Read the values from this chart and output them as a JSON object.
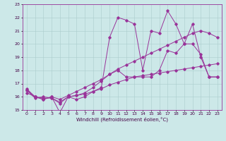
{
  "xlabel": "Windchill (Refroidissement éolien,°C)",
  "xlim": [
    -0.5,
    23.5
  ],
  "ylim": [
    15,
    23
  ],
  "yticks": [
    15,
    16,
    17,
    18,
    19,
    20,
    21,
    22,
    23
  ],
  "xticks": [
    0,
    1,
    2,
    3,
    4,
    5,
    6,
    7,
    8,
    9,
    10,
    11,
    12,
    13,
    14,
    15,
    16,
    17,
    18,
    19,
    20,
    21,
    22,
    23
  ],
  "bg_color": "#cce8e8",
  "grid_color": "#aacccc",
  "line_color": "#993399",
  "line1_x": [
    0,
    1,
    2,
    3,
    4,
    5,
    6,
    7,
    8,
    9,
    10,
    11,
    12,
    13,
    14,
    15,
    16,
    17,
    18,
    19,
    20,
    21,
    22,
    23
  ],
  "line1_y": [
    16.6,
    16.0,
    15.8,
    16.0,
    14.8,
    16.0,
    15.8,
    16.0,
    16.4,
    16.7,
    20.5,
    22.0,
    21.8,
    21.5,
    18.0,
    21.0,
    20.8,
    22.5,
    21.5,
    20.0,
    21.5,
    19.0,
    17.5,
    17.5
  ],
  "line2_x": [
    0,
    1,
    2,
    3,
    4,
    5,
    6,
    7,
    8,
    9,
    10,
    11,
    12,
    13,
    14,
    15,
    16,
    17,
    18,
    19,
    20,
    21,
    22,
    23
  ],
  "line2_y": [
    16.5,
    16.0,
    15.9,
    15.9,
    15.6,
    16.0,
    16.1,
    16.3,
    16.7,
    17.2,
    17.7,
    18.0,
    17.5,
    17.5,
    17.5,
    17.5,
    18.0,
    19.5,
    19.3,
    20.0,
    20.0,
    19.2,
    17.5,
    17.5
  ],
  "line3_x": [
    0,
    1,
    2,
    3,
    4,
    5,
    6,
    7,
    8,
    9,
    10,
    11,
    12,
    13,
    14,
    15,
    16,
    17,
    18,
    19,
    20,
    21,
    22,
    23
  ],
  "line3_y": [
    16.3,
    16.0,
    15.8,
    16.0,
    15.8,
    16.1,
    16.4,
    16.7,
    17.0,
    17.3,
    17.7,
    18.1,
    18.4,
    18.7,
    19.0,
    19.3,
    19.6,
    19.9,
    20.2,
    20.5,
    20.8,
    21.0,
    20.8,
    20.5
  ],
  "line4_x": [
    0,
    1,
    2,
    3,
    4,
    5,
    6,
    7,
    8,
    9,
    10,
    11,
    12,
    13,
    14,
    15,
    16,
    17,
    18,
    19,
    20,
    21,
    22,
    23
  ],
  "line4_y": [
    16.5,
    15.9,
    16.0,
    15.9,
    15.5,
    16.0,
    16.1,
    16.2,
    16.4,
    16.6,
    16.9,
    17.1,
    17.3,
    17.5,
    17.6,
    17.7,
    17.8,
    17.9,
    18.0,
    18.1,
    18.2,
    18.3,
    18.4,
    18.5
  ]
}
